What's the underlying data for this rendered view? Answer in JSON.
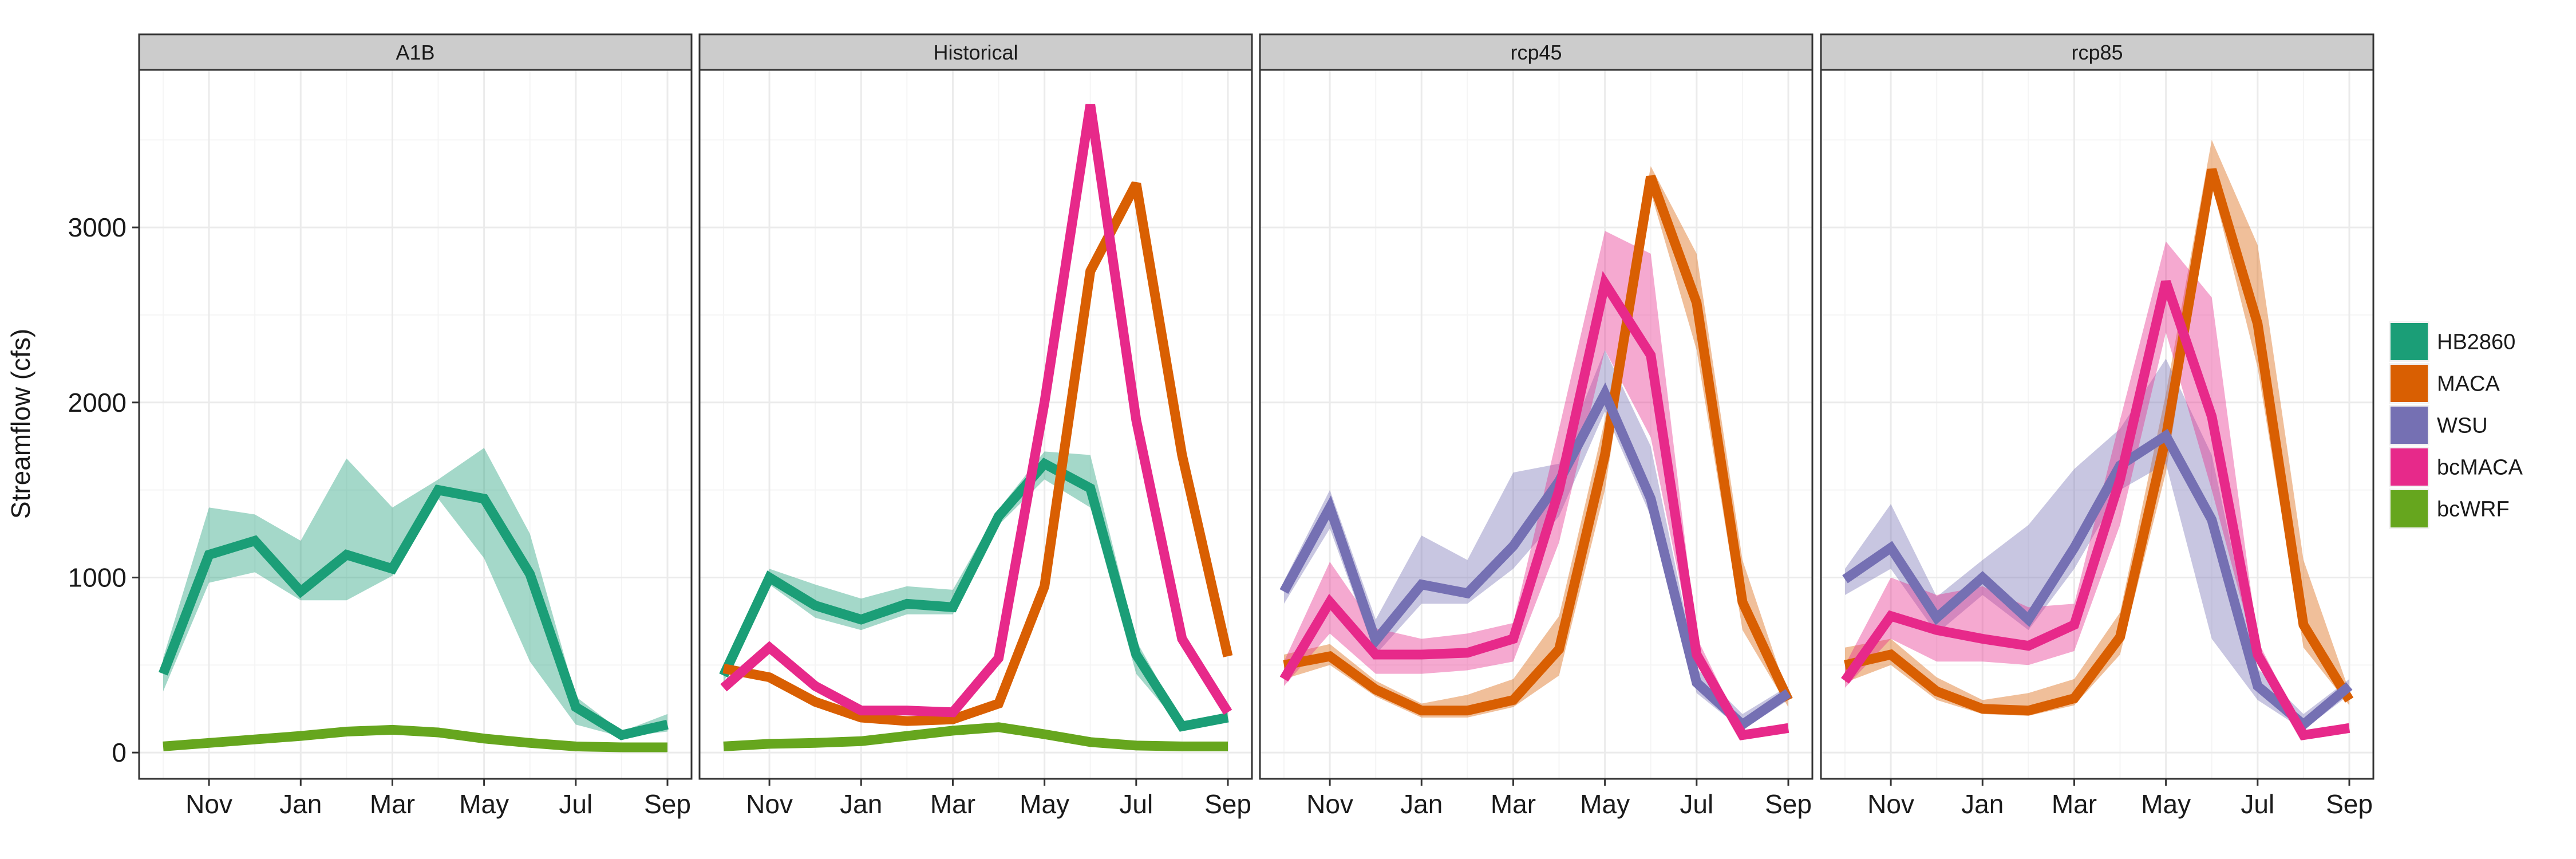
{
  "chart_data": {
    "type": "line",
    "ylabel": "Streamflow (cfs)",
    "ylim": [
      -150,
      3900
    ],
    "y_ticks": [
      0,
      1000,
      2000,
      3000
    ],
    "x_ticks": [
      {
        "month": 2,
        "label": "Nov"
      },
      {
        "month": 4,
        "label": "Jan"
      },
      {
        "month": 6,
        "label": "Mar"
      },
      {
        "month": 8,
        "label": "May"
      },
      {
        "month": 10,
        "label": "Jul"
      },
      {
        "month": 12,
        "label": "Sep"
      }
    ],
    "x_order": [
      "Oct",
      "Nov",
      "Dec",
      "Jan",
      "Feb",
      "Mar",
      "Apr",
      "May",
      "Jun",
      "Jul",
      "Aug",
      "Sep"
    ],
    "grid": true,
    "legend_position": "right",
    "series_styles": [
      {
        "name": "HB2860",
        "color": "#1b9e77"
      },
      {
        "name": "MACA",
        "color": "#d95f02"
      },
      {
        "name": "WSU",
        "color": "#7570b3"
      },
      {
        "name": "bcMACA",
        "color": "#e7298a"
      },
      {
        "name": "bcWRF",
        "color": "#66a61e"
      }
    ],
    "panels": [
      {
        "title": "A1B",
        "series": [
          {
            "name": "HB2860",
            "values": [
              450,
              1130,
              1210,
              920,
              1130,
              1050,
              1500,
              1450,
              1020,
              260,
              100,
              160
            ],
            "lower": [
              350,
              970,
              1030,
              870,
              870,
              1010,
              1450,
              1110,
              520,
              160,
              90,
              120
            ],
            "upper": [
              540,
              1400,
              1360,
              1210,
              1680,
              1400,
              1560,
              1740,
              1250,
              320,
              120,
              220
            ]
          },
          {
            "name": "bcWRF",
            "values": [
              35,
              55,
              75,
              95,
              120,
              130,
              115,
              80,
              55,
              35,
              30,
              30
            ]
          }
        ]
      },
      {
        "title": "Historical",
        "series": [
          {
            "name": "HB2860",
            "values": [
              440,
              1000,
              840,
              760,
              850,
              830,
              1350,
              1650,
              1510,
              560,
              150,
              200
            ],
            "lower": [
              400,
              960,
              770,
              700,
              790,
              790,
              1300,
              1560,
              1400,
              450,
              140,
              180
            ],
            "upper": [
              500,
              1050,
              960,
              880,
              950,
              930,
              1390,
              1720,
              1700,
              640,
              170,
              230
            ]
          },
          {
            "name": "MACA",
            "values": [
              480,
              430,
              290,
              200,
              180,
              190,
              280,
              950,
              2750,
              3250,
              1700,
              550
            ]
          },
          {
            "name": "bcMACA",
            "values": [
              370,
              600,
              380,
              240,
              240,
              230,
              540,
              2000,
              3700,
              1900,
              650,
              230
            ]
          },
          {
            "name": "bcWRF",
            "values": [
              35,
              50,
              55,
              65,
              95,
              125,
              145,
              105,
              60,
              40,
              35,
              35
            ]
          }
        ]
      },
      {
        "title": "rcp45",
        "series": [
          {
            "name": "MACA",
            "values": [
              500,
              550,
              360,
              240,
              240,
              300,
              590,
              1700,
              3290,
              2570,
              860,
              300
            ],
            "lower": [
              420,
              500,
              320,
              200,
              200,
              260,
              440,
              1500,
              3200,
              2300,
              700,
              260
            ],
            "upper": [
              560,
              620,
              410,
              280,
              330,
              420,
              780,
              1900,
              3350,
              2850,
              1100,
              320
            ]
          },
          {
            "name": "WSU",
            "values": [
              920,
              1400,
              640,
              960,
              910,
              1180,
              1550,
              2050,
              1450,
              400,
              160,
              340
            ],
            "lower": [
              850,
              1280,
              560,
              850,
              850,
              1050,
              1350,
              1950,
              1350,
              340,
              130,
              300
            ],
            "upper": [
              980,
              1500,
              760,
              1240,
              1100,
              1600,
              1650,
              2300,
              1750,
              480,
              220,
              380
            ]
          },
          {
            "name": "bcMACA",
            "values": [
              420,
              860,
              560,
              560,
              570,
              650,
              1500,
              2680,
              2270,
              560,
              100,
              140
            ],
            "lower": [
              380,
              680,
              450,
              450,
              470,
              520,
              1200,
              2300,
              1800,
              500,
              90,
              120
            ],
            "upper": [
              520,
              1090,
              710,
              650,
              680,
              740,
              1850,
              2980,
              2850,
              660,
              120,
              170
            ]
          }
        ]
      },
      {
        "title": "rcp85",
        "series": [
          {
            "name": "MACA",
            "values": [
              500,
              560,
              350,
              250,
              240,
              310,
              660,
              1800,
              3330,
              2450,
              730,
              300
            ],
            "lower": [
              400,
              500,
              300,
              220,
              210,
              270,
              560,
              1600,
              3250,
              2200,
              600,
              270
            ],
            "upper": [
              600,
              650,
              430,
              300,
              340,
              420,
              800,
              2050,
              3500,
              2900,
              1100,
              350
            ]
          },
          {
            "name": "WSU",
            "values": [
              990,
              1170,
              770,
              1000,
              760,
              1170,
              1640,
              1810,
              1330,
              380,
              160,
              380
            ],
            "lower": [
              900,
              1050,
              680,
              900,
              700,
              1050,
              1500,
              1650,
              650,
              300,
              130,
              330
            ],
            "upper": [
              1050,
              1420,
              890,
              1100,
              1300,
              1620,
              1850,
              2250,
              1700,
              480,
              220,
              420
            ]
          },
          {
            "name": "bcMACA",
            "values": [
              410,
              780,
              700,
              650,
              610,
              730,
              1560,
              2690,
              1920,
              560,
              100,
              140
            ],
            "lower": [
              370,
              650,
              520,
              520,
              500,
              580,
              1300,
              2400,
              1500,
              520,
              90,
              120
            ],
            "upper": [
              500,
              1000,
              900,
              950,
              830,
              850,
              1900,
              2920,
              2600,
              640,
              120,
              170
            ]
          }
        ]
      }
    ]
  }
}
